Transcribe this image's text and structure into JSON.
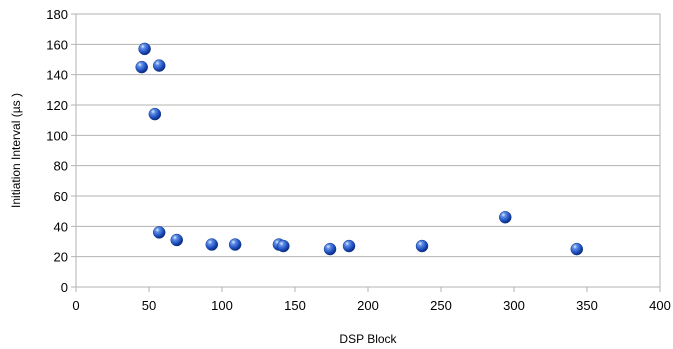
{
  "chart_data": {
    "type": "scatter",
    "xlabel": "DSP Block",
    "ylabel": "Initiation Interval (µs )",
    "xlim": [
      0,
      400
    ],
    "ylim": [
      0,
      180
    ],
    "x_ticks": [
      0,
      50,
      100,
      150,
      200,
      250,
      300,
      350,
      400
    ],
    "y_ticks": [
      0,
      20,
      40,
      60,
      80,
      100,
      120,
      140,
      160,
      180
    ],
    "grid": "horizontal",
    "legend": "none",
    "marker_color": "#2255cc",
    "series": [
      {
        "points": [
          {
            "x": 47,
            "y": 157
          },
          {
            "x": 45,
            "y": 145
          },
          {
            "x": 57,
            "y": 146
          },
          {
            "x": 54,
            "y": 114
          },
          {
            "x": 57,
            "y": 36
          },
          {
            "x": 69,
            "y": 31
          },
          {
            "x": 93,
            "y": 28
          },
          {
            "x": 109,
            "y": 28
          },
          {
            "x": 139,
            "y": 28
          },
          {
            "x": 142,
            "y": 27
          },
          {
            "x": 174,
            "y": 25
          },
          {
            "x": 187,
            "y": 27
          },
          {
            "x": 237,
            "y": 27
          },
          {
            "x": 294,
            "y": 46
          },
          {
            "x": 343,
            "y": 25
          }
        ]
      }
    ]
  }
}
